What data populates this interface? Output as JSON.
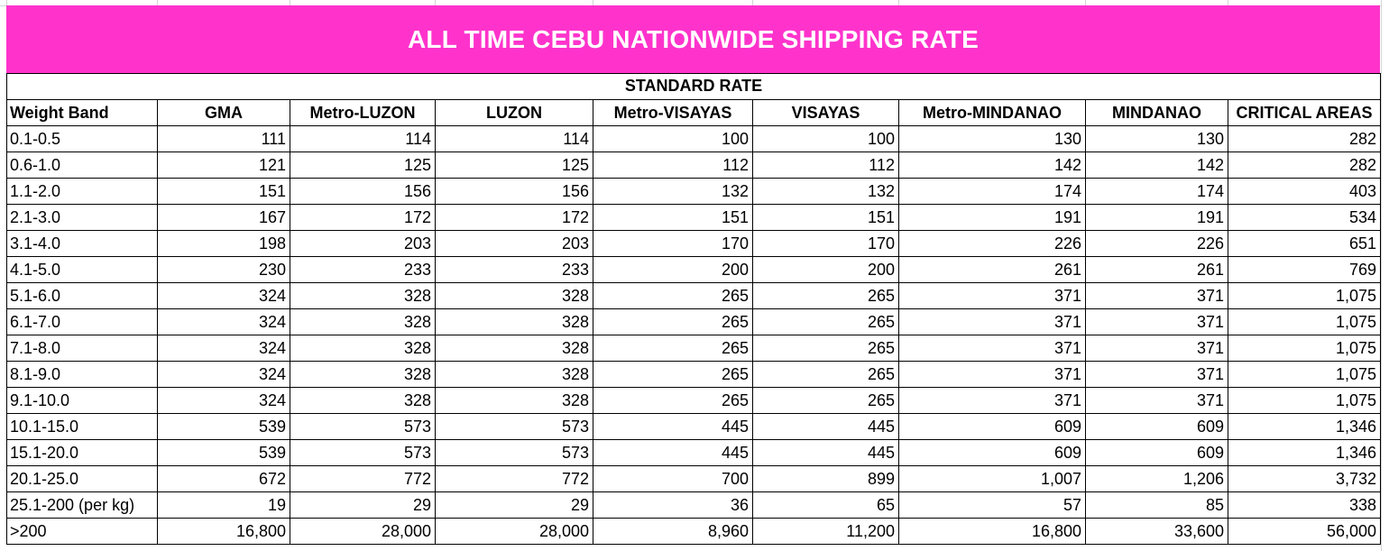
{
  "banner": {
    "title": "ALL TIME CEBU NATIONWIDE SHIPPING RATE",
    "background_color": "#ff33cc",
    "text_color": "#ffffff"
  },
  "table": {
    "subtitle": "STANDARD RATE",
    "headers": [
      "Weight Band",
      "GMA",
      "Metro-LUZON",
      "LUZON",
      "Metro-VISAYAS",
      "VISAYAS",
      "Metro-MINDANAO",
      "MINDANAO",
      "CRITICAL AREAS"
    ],
    "rows": [
      [
        "0.1-0.5",
        "111",
        "114",
        "114",
        "100",
        "100",
        "130",
        "130",
        "282"
      ],
      [
        "0.6-1.0",
        "121",
        "125",
        "125",
        "112",
        "112",
        "142",
        "142",
        "282"
      ],
      [
        "1.1-2.0",
        "151",
        "156",
        "156",
        "132",
        "132",
        "174",
        "174",
        "403"
      ],
      [
        "2.1-3.0",
        "167",
        "172",
        "172",
        "151",
        "151",
        "191",
        "191",
        "534"
      ],
      [
        "3.1-4.0",
        "198",
        "203",
        "203",
        "170",
        "170",
        "226",
        "226",
        "651"
      ],
      [
        "4.1-5.0",
        "230",
        "233",
        "233",
        "200",
        "200",
        "261",
        "261",
        "769"
      ],
      [
        "5.1-6.0",
        "324",
        "328",
        "328",
        "265",
        "265",
        "371",
        "371",
        "1,075"
      ],
      [
        "6.1-7.0",
        "324",
        "328",
        "328",
        "265",
        "265",
        "371",
        "371",
        "1,075"
      ],
      [
        "7.1-8.0",
        "324",
        "328",
        "328",
        "265",
        "265",
        "371",
        "371",
        "1,075"
      ],
      [
        "8.1-9.0",
        "324",
        "328",
        "328",
        "265",
        "265",
        "371",
        "371",
        "1,075"
      ],
      [
        "9.1-10.0",
        "324",
        "328",
        "328",
        "265",
        "265",
        "371",
        "371",
        "1,075"
      ],
      [
        "10.1-15.0",
        "539",
        "573",
        "573",
        "445",
        "445",
        "609",
        "609",
        "1,346"
      ],
      [
        "15.1-20.0",
        "539",
        "573",
        "573",
        "445",
        "445",
        "609",
        "609",
        "1,346"
      ],
      [
        "20.1-25.0",
        "672",
        "772",
        "772",
        "700",
        "899",
        "1,007",
        "1,206",
        "3,732"
      ],
      [
        "25.1-200 (per kg)",
        "19",
        "29",
        "29",
        "36",
        "65",
        "57",
        "85",
        "338"
      ],
      [
        ">200",
        "16,800",
        "28,000",
        "28,000",
        "8,960",
        "11,200",
        "16,800",
        "33,600",
        "56,000"
      ]
    ]
  }
}
